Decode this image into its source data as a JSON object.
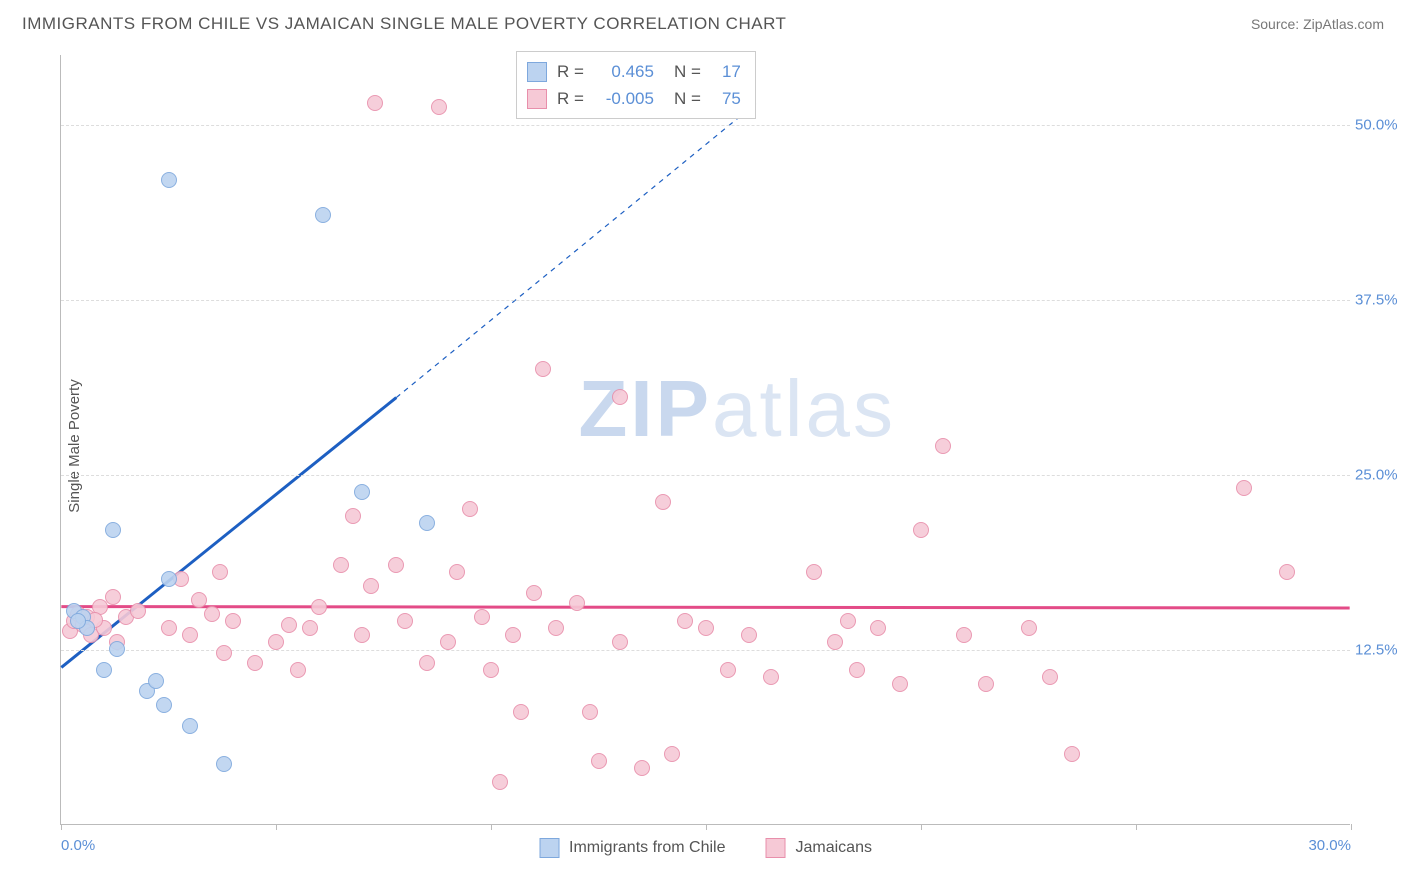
{
  "title": "IMMIGRANTS FROM CHILE VS JAMAICAN SINGLE MALE POVERTY CORRELATION CHART",
  "source": "Source: ZipAtlas.com",
  "y_axis_label": "Single Male Poverty",
  "watermark": {
    "part1": "ZIP",
    "part2": "atlas"
  },
  "chart": {
    "type": "scatter",
    "background_color": "#ffffff",
    "grid_color": "#dddddd",
    "axis_color": "#bbbbbb",
    "tick_label_color": "#5b8fd6",
    "tick_fontsize": 15,
    "xlim": [
      0,
      30
    ],
    "ylim": [
      0,
      55
    ],
    "y_ticks": [
      12.5,
      25.0,
      37.5,
      50.0
    ],
    "y_tick_labels": [
      "12.5%",
      "25.0%",
      "37.5%",
      "50.0%"
    ],
    "x_ticks_minor": [
      0,
      5,
      10,
      15,
      20,
      25,
      30
    ],
    "x_tick_labels": [
      {
        "v": 0,
        "t": "0.0%",
        "pos": "first"
      },
      {
        "v": 30,
        "t": "30.0%",
        "pos": "last"
      }
    ],
    "marker_radius": 8,
    "marker_border_alpha": 0.45,
    "series": [
      {
        "name": "Immigrants from Chile",
        "fill": "#bcd3f0",
        "stroke": "#7ea8dd",
        "R": "0.465",
        "N": "17",
        "trend": {
          "color": "#1d5fc2",
          "width": 3,
          "solid_x": [
            0,
            7.8
          ],
          "solid_y": [
            11.2,
            30.5
          ],
          "dashed_x": [
            7.8,
            16.2
          ],
          "dashed_y": [
            30.5,
            51.6
          ]
        },
        "points": [
          [
            0.3,
            15.2
          ],
          [
            0.5,
            14.8
          ],
          [
            0.6,
            14.0
          ],
          [
            1.2,
            21.0
          ],
          [
            1.3,
            12.5
          ],
          [
            2.0,
            9.5
          ],
          [
            2.2,
            10.2
          ],
          [
            2.4,
            8.5
          ],
          [
            2.5,
            46.0
          ],
          [
            2.5,
            17.5
          ],
          [
            3.0,
            7.0
          ],
          [
            3.8,
            4.3
          ],
          [
            6.1,
            43.5
          ],
          [
            7.0,
            23.7
          ],
          [
            8.5,
            21.5
          ],
          [
            0.4,
            14.5
          ],
          [
            1.0,
            11.0
          ]
        ]
      },
      {
        "name": "Jamaicans",
        "fill": "#f6c9d6",
        "stroke": "#e88fab",
        "R": "-0.005",
        "N": "75",
        "trend": {
          "color": "#e34b87",
          "width": 3,
          "solid_x": [
            0,
            30
          ],
          "solid_y": [
            15.55,
            15.45
          ]
        },
        "points": [
          [
            0.2,
            13.8
          ],
          [
            0.3,
            14.5
          ],
          [
            0.4,
            15.0
          ],
          [
            0.5,
            14.2
          ],
          [
            0.6,
            14.8
          ],
          [
            0.7,
            13.5
          ],
          [
            0.9,
            15.5
          ],
          [
            1.0,
            14.0
          ],
          [
            1.2,
            16.2
          ],
          [
            1.3,
            13.0
          ],
          [
            1.5,
            14.8
          ],
          [
            1.8,
            15.2
          ],
          [
            2.5,
            14.0
          ],
          [
            2.8,
            17.5
          ],
          [
            3.0,
            13.5
          ],
          [
            3.2,
            16.0
          ],
          [
            3.5,
            15.0
          ],
          [
            3.7,
            18.0
          ],
          [
            3.8,
            12.2
          ],
          [
            4.0,
            14.5
          ],
          [
            4.5,
            11.5
          ],
          [
            5.0,
            13.0
          ],
          [
            5.3,
            14.2
          ],
          [
            5.5,
            11.0
          ],
          [
            6.0,
            15.5
          ],
          [
            6.5,
            18.5
          ],
          [
            6.8,
            22.0
          ],
          [
            7.0,
            13.5
          ],
          [
            7.2,
            17.0
          ],
          [
            7.3,
            51.5
          ],
          [
            7.8,
            18.5
          ],
          [
            8.0,
            14.5
          ],
          [
            8.5,
            11.5
          ],
          [
            8.8,
            51.2
          ],
          [
            9.0,
            13.0
          ],
          [
            9.2,
            18.0
          ],
          [
            9.5,
            22.5
          ],
          [
            9.8,
            14.8
          ],
          [
            10.0,
            11.0
          ],
          [
            10.2,
            3.0
          ],
          [
            10.5,
            13.5
          ],
          [
            10.7,
            8.0
          ],
          [
            11.0,
            16.5
          ],
          [
            11.2,
            32.5
          ],
          [
            11.5,
            14.0
          ],
          [
            12.0,
            15.8
          ],
          [
            12.3,
            8.0
          ],
          [
            12.5,
            4.5
          ],
          [
            13.0,
            30.5
          ],
          [
            13.0,
            13.0
          ],
          [
            13.5,
            4.0
          ],
          [
            14.0,
            23.0
          ],
          [
            14.5,
            14.5
          ],
          [
            15.0,
            14.0
          ],
          [
            15.5,
            11.0
          ],
          [
            16.0,
            13.5
          ],
          [
            16.5,
            10.5
          ],
          [
            17.5,
            18.0
          ],
          [
            18.0,
            13.0
          ],
          [
            18.3,
            14.5
          ],
          [
            18.5,
            11.0
          ],
          [
            19.0,
            14.0
          ],
          [
            19.5,
            10.0
          ],
          [
            20.0,
            21.0
          ],
          [
            20.5,
            27.0
          ],
          [
            21.0,
            13.5
          ],
          [
            21.5,
            10.0
          ],
          [
            22.5,
            14.0
          ],
          [
            23.0,
            10.5
          ],
          [
            23.5,
            5.0
          ],
          [
            27.5,
            24.0
          ],
          [
            28.5,
            18.0
          ],
          [
            14.2,
            5.0
          ],
          [
            5.8,
            14.0
          ],
          [
            0.8,
            14.6
          ]
        ]
      }
    ]
  },
  "legend_top": {
    "r_label": "R =",
    "n_label": "N ="
  },
  "bottom_legend_items": [
    "Immigrants from Chile",
    "Jamaicans"
  ]
}
